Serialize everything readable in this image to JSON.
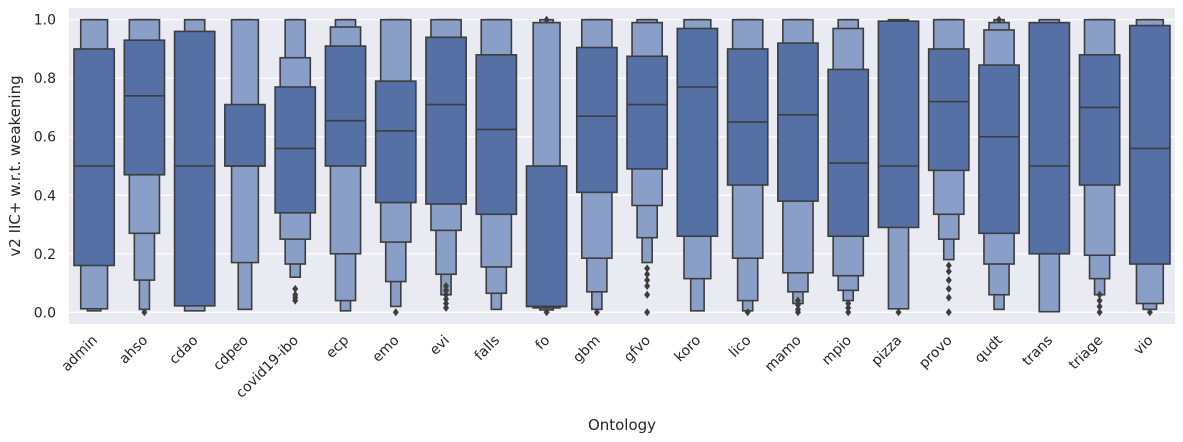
{
  "chart_data": {
    "type": "boxen",
    "xlabel": "Ontology",
    "ylabel": "v2 IIC+ w.r.t. weakening",
    "ylim": [
      -0.04,
      1.04
    ],
    "yticks": [
      0.0,
      0.2,
      0.4,
      0.6,
      0.8,
      1.0
    ],
    "ytick_labels": [
      "0.0",
      "0.2",
      "0.4",
      "0.6",
      "0.8",
      "1.0"
    ],
    "grid": true,
    "background": "#eaeaf2",
    "colors": {
      "inner_box": "#5470a5",
      "outer_box": "#8a9fc7",
      "line": "#3d3d3d",
      "grid": "#ffffff"
    },
    "categories": [
      "admin",
      "ahso",
      "cdao",
      "cdpeo",
      "covid19-ibo",
      "ecp",
      "emo",
      "evi",
      "falls",
      "fo",
      "gbm",
      "gfvo",
      "koro",
      "lico",
      "mamo",
      "mpio",
      "pizza",
      "provo",
      "qudt",
      "trans",
      "triage",
      "vio"
    ],
    "boxes": [
      {
        "median": 0.5,
        "levels": [
          [
            0.16,
            0.9
          ],
          [
            0.012,
            1.0
          ],
          [
            0.005,
            1.0
          ]
        ],
        "outliers": []
      },
      {
        "median": 0.74,
        "levels": [
          [
            0.47,
            0.93
          ],
          [
            0.27,
            1.0
          ],
          [
            0.11,
            1.0
          ],
          [
            0.01,
            1.0
          ]
        ],
        "outliers": [
          0.0
        ]
      },
      {
        "median": 0.5,
        "levels": [
          [
            0.022,
            0.96
          ],
          [
            0.005,
            1.0
          ]
        ],
        "outliers": []
      },
      {
        "median": 0.5,
        "levels": [
          [
            0.5,
            0.71
          ],
          [
            0.17,
            1.0
          ],
          [
            0.01,
            1.0
          ]
        ],
        "outliers": []
      },
      {
        "median": 0.56,
        "levels": [
          [
            0.34,
            0.77
          ],
          [
            0.25,
            0.87
          ],
          [
            0.165,
            1.0
          ],
          [
            0.12,
            1.0
          ]
        ],
        "outliers": [
          0.04,
          0.05,
          0.06,
          0.08
        ]
      },
      {
        "median": 0.655,
        "levels": [
          [
            0.5,
            0.91
          ],
          [
            0.2,
            0.975
          ],
          [
            0.04,
            1.0
          ],
          [
            0.005,
            1.0
          ]
        ],
        "outliers": []
      },
      {
        "median": 0.62,
        "levels": [
          [
            0.375,
            0.79
          ],
          [
            0.24,
            1.0
          ],
          [
            0.105,
            1.0
          ],
          [
            0.02,
            1.0
          ]
        ],
        "outliers": [
          0.0
        ]
      },
      {
        "median": 0.71,
        "levels": [
          [
            0.37,
            0.94
          ],
          [
            0.28,
            1.0
          ],
          [
            0.13,
            1.0
          ],
          [
            0.06,
            1.0
          ]
        ],
        "outliers": [
          0.015,
          0.03,
          0.045,
          0.06,
          0.075,
          0.09
        ]
      },
      {
        "median": 0.625,
        "levels": [
          [
            0.335,
            0.88
          ],
          [
            0.155,
            1.0
          ],
          [
            0.065,
            1.0
          ],
          [
            0.01,
            1.0
          ]
        ],
        "outliers": []
      },
      {
        "median": 0.02,
        "levels": [
          [
            0.02,
            0.5
          ],
          [
            0.015,
            0.99
          ],
          [
            0.008,
            1.0
          ]
        ],
        "outliers": [
          0.0,
          1.0
        ]
      },
      {
        "median": 0.67,
        "levels": [
          [
            0.41,
            0.905
          ],
          [
            0.185,
            1.0
          ],
          [
            0.07,
            1.0
          ],
          [
            0.01,
            1.0
          ]
        ],
        "outliers": [
          0.0
        ]
      },
      {
        "median": 0.71,
        "levels": [
          [
            0.49,
            0.875
          ],
          [
            0.365,
            0.99
          ],
          [
            0.255,
            1.0
          ],
          [
            0.17,
            1.0
          ]
        ],
        "outliers": [
          0.0,
          0.06,
          0.09,
          0.11,
          0.13,
          0.15
        ]
      },
      {
        "median": 0.77,
        "levels": [
          [
            0.26,
            0.97
          ],
          [
            0.115,
            1.0
          ],
          [
            0.005,
            1.0
          ]
        ],
        "outliers": []
      },
      {
        "median": 0.65,
        "levels": [
          [
            0.435,
            0.9
          ],
          [
            0.185,
            1.0
          ],
          [
            0.04,
            1.0
          ],
          [
            0.005,
            1.0
          ]
        ],
        "outliers": [
          0.0
        ]
      },
      {
        "median": 0.675,
        "levels": [
          [
            0.38,
            0.92
          ],
          [
            0.135,
            1.0
          ],
          [
            0.07,
            1.0
          ],
          [
            0.03,
            1.0
          ]
        ],
        "outliers": [
          0.0,
          0.01,
          0.025,
          0.04
        ]
      },
      {
        "median": 0.51,
        "levels": [
          [
            0.26,
            0.83
          ],
          [
            0.125,
            0.97
          ],
          [
            0.075,
            1.0
          ],
          [
            0.04,
            1.0
          ]
        ],
        "outliers": [
          0.0,
          0.015,
          0.03
        ]
      },
      {
        "median": 0.5,
        "levels": [
          [
            0.29,
            0.995
          ],
          [
            0.012,
            1.0
          ]
        ],
        "outliers": [
          0.0
        ]
      },
      {
        "median": 0.72,
        "levels": [
          [
            0.485,
            0.9
          ],
          [
            0.335,
            1.0
          ],
          [
            0.25,
            1.0
          ],
          [
            0.18,
            1.0
          ]
        ],
        "outliers": [
          0.0,
          0.05,
          0.08,
          0.11,
          0.14,
          0.16
        ]
      },
      {
        "median": 0.6,
        "levels": [
          [
            0.27,
            0.845
          ],
          [
            0.165,
            0.965
          ],
          [
            0.06,
            0.99
          ],
          [
            0.01,
            1.0
          ]
        ],
        "outliers": [
          1.0
        ]
      },
      {
        "median": 0.5,
        "levels": [
          [
            0.2,
            0.99
          ],
          [
            0.002,
            1.0
          ]
        ],
        "outliers": []
      },
      {
        "median": 0.7,
        "levels": [
          [
            0.435,
            0.88
          ],
          [
            0.195,
            1.0
          ],
          [
            0.115,
            1.0
          ],
          [
            0.06,
            1.0
          ]
        ],
        "outliers": [
          0.0,
          0.02,
          0.04,
          0.06
        ]
      },
      {
        "median": 0.56,
        "levels": [
          [
            0.165,
            0.98
          ],
          [
            0.03,
            1.0
          ],
          [
            0.01,
            1.0
          ]
        ],
        "outliers": [
          0.0
        ]
      }
    ]
  }
}
